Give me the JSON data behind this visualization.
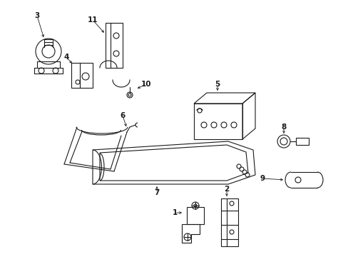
{
  "bg": "#ffffff",
  "lc": "#1a1a1a",
  "lw": 0.8,
  "fig_w": 4.89,
  "fig_h": 3.6,
  "dpi": 100
}
